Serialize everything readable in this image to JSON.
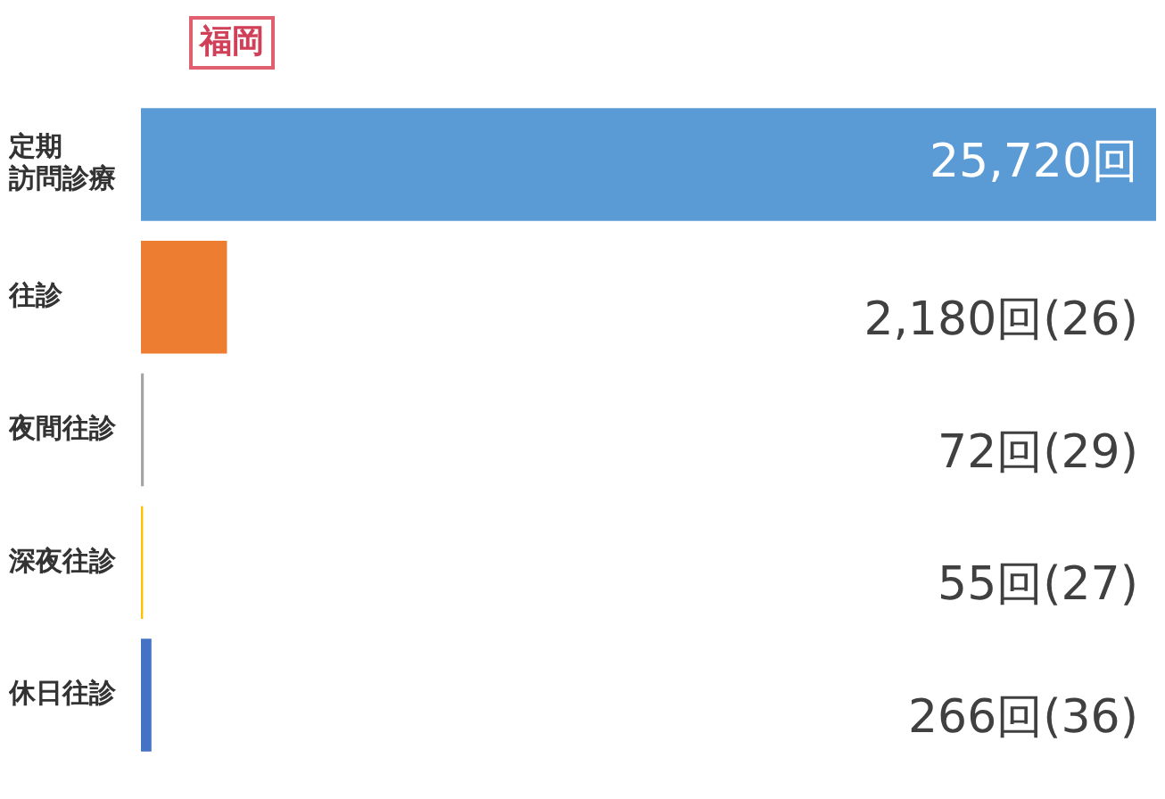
{
  "chart_data": {
    "type": "bar",
    "orientation": "horizontal",
    "title": "福岡",
    "categories": [
      "定期訪問診療",
      "往診",
      "夜間往診",
      "深夜往診",
      "休日往診"
    ],
    "values": [
      25720,
      2180,
      72,
      55,
      266
    ],
    "colors": [
      "#5b9bd5",
      "#ed7d31",
      "#a5a5a5",
      "#ffc000",
      "#4472c4"
    ],
    "value_labels": [
      "25,720回",
      "2,180回(26)",
      "72回(29)",
      "55回(27)",
      "266回(36)"
    ],
    "xlim": [
      0,
      25720
    ],
    "tick_labels": "y",
    "legend": false
  }
}
